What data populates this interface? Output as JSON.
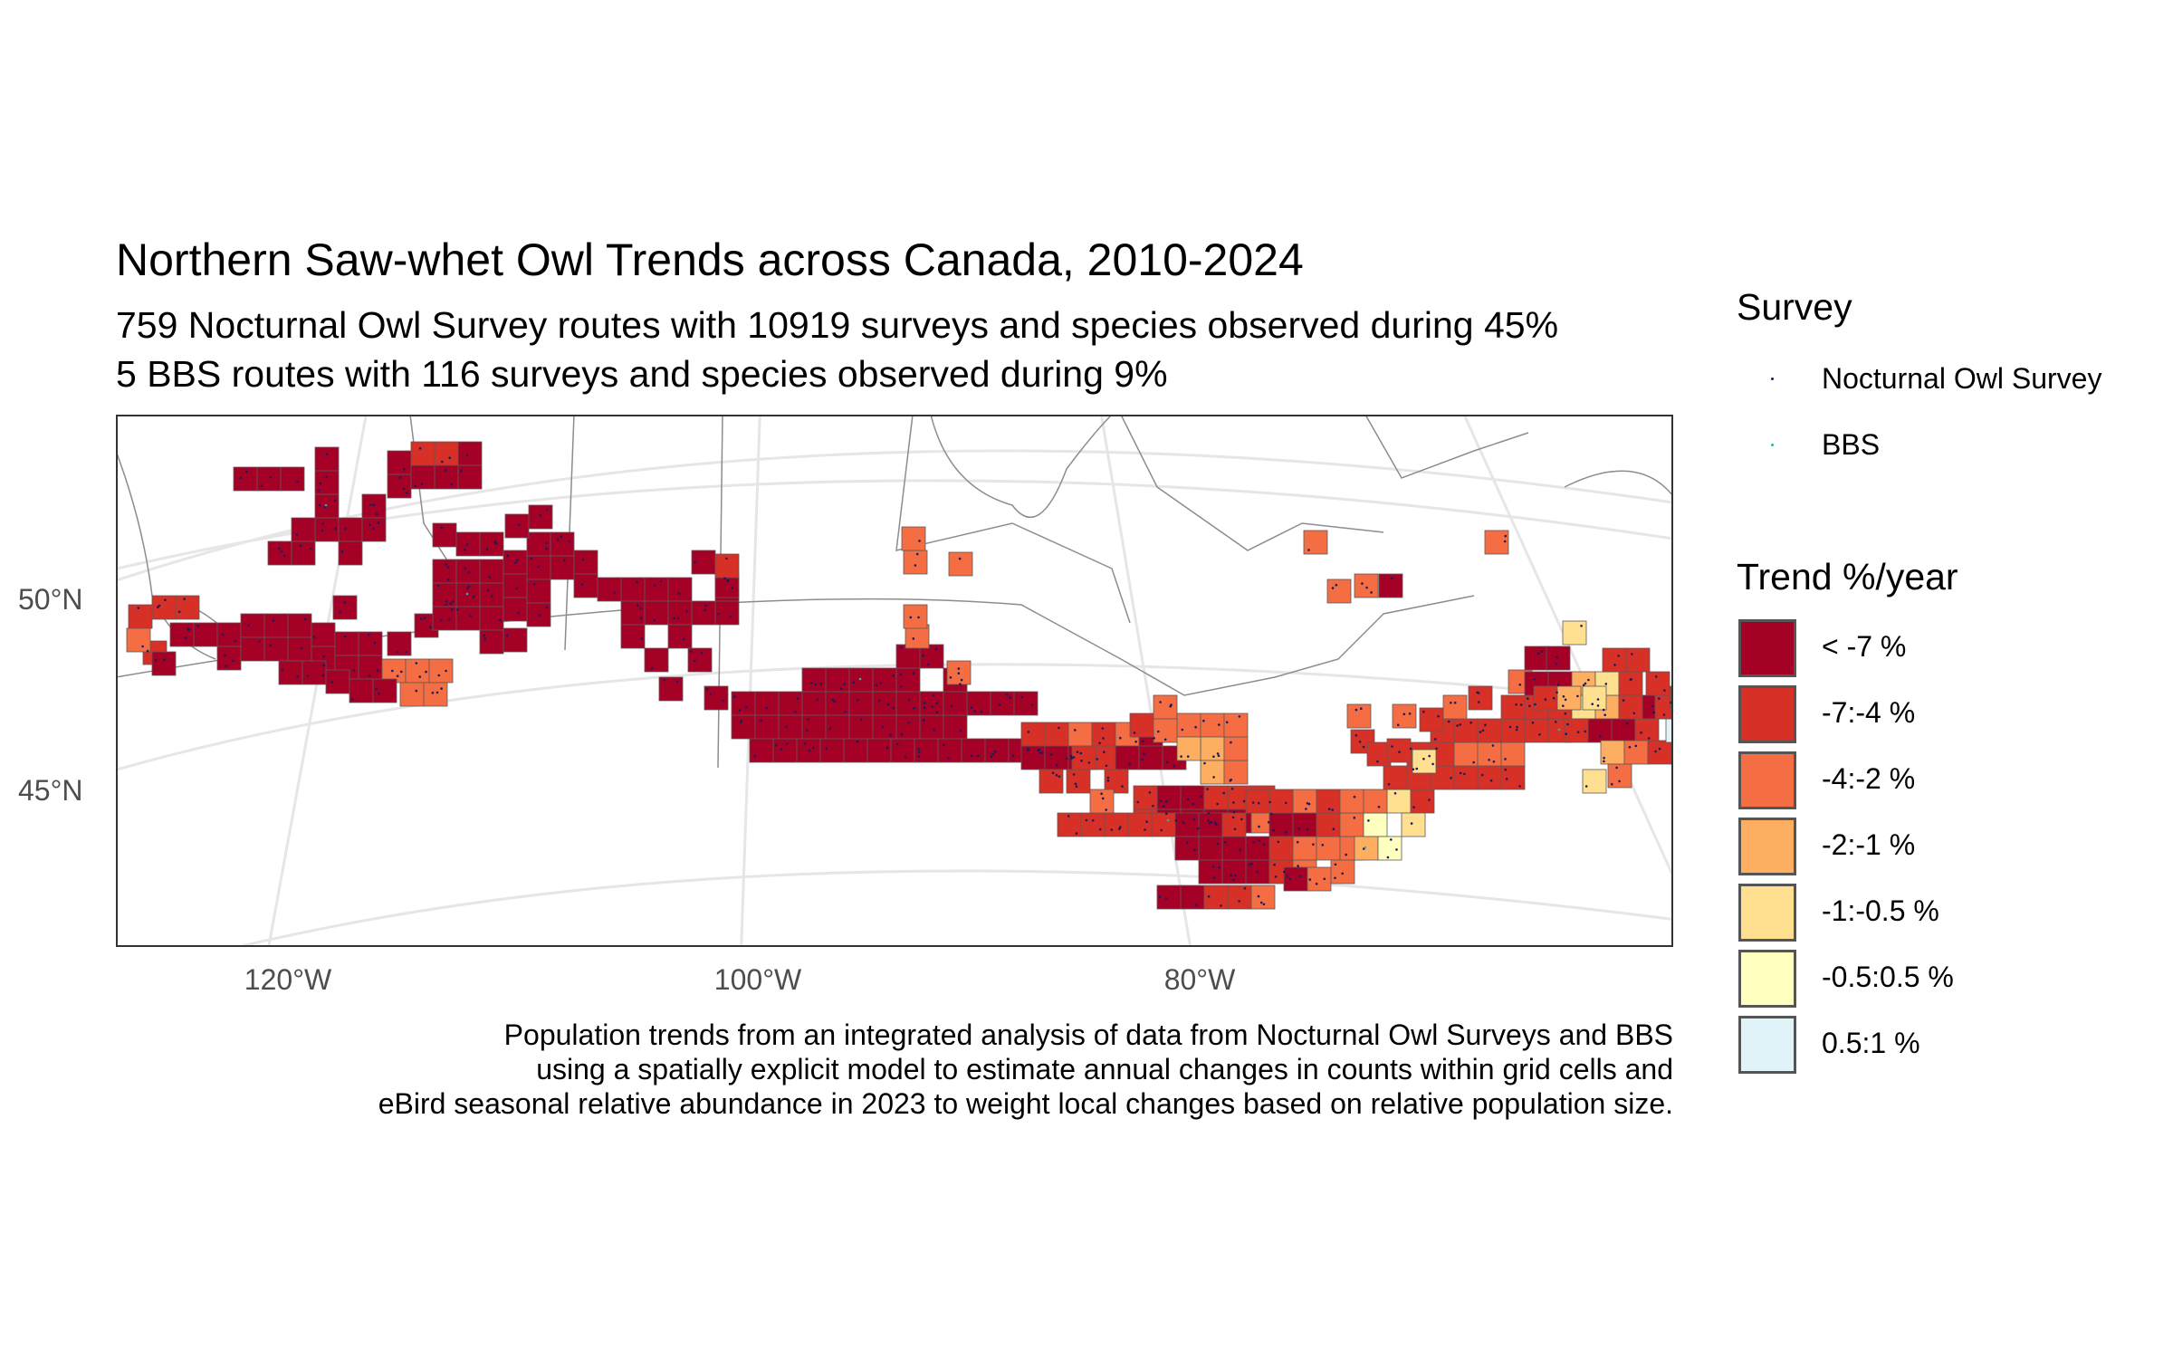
{
  "title": "Northern Saw-whet Owl Trends across Canada, 2010-2024",
  "subtitle_lines": [
    "759 Nocturnal Owl Survey routes with 10919 surveys and species observed during 45%",
    "5 BBS routes with 116 surveys and species observed during 9%"
  ],
  "axes": {
    "y_labels": [
      "50°N",
      "45°N"
    ],
    "x_labels": [
      "120°W",
      "100°W",
      "80°W"
    ]
  },
  "caption_lines": [
    "Population trends from an integrated analysis of data from Nocturnal Owl Surveys and BBS",
    "using a spatially explicit model to estimate annual changes in counts within grid cells and",
    "eBird seasonal relative abundance in 2023 to weight local changes based on relative population size."
  ],
  "survey_legend": {
    "title": "Survey",
    "items": [
      {
        "label": "Nocturnal Owl Survey",
        "color": "#1a1a5e"
      },
      {
        "label": "BBS",
        "color": "#2ab5a0"
      }
    ]
  },
  "trend_legend": {
    "title": "Trend %/year",
    "items": [
      {
        "label": "< -7 %",
        "color": "#a50026"
      },
      {
        "label": "-7:-4 %",
        "color": "#d73027"
      },
      {
        "label": "-4:-2 %",
        "color": "#f46d43"
      },
      {
        "label": "-2:-1 %",
        "color": "#fdae61"
      },
      {
        "label": "-1:-0.5 %",
        "color": "#fee090"
      },
      {
        "label": "-0.5:0.5 %",
        "color": "#ffffbf"
      },
      {
        "label": "0.5:1 %",
        "color": "#e0f3f8"
      }
    ]
  }
}
